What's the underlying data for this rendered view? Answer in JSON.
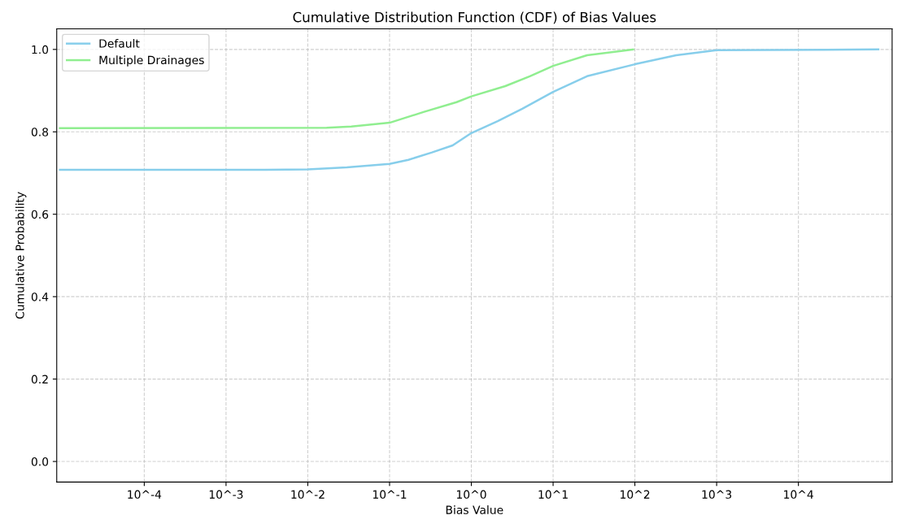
{
  "chart_data": {
    "type": "line",
    "title": "Cumulative Distribution Function (CDF) of Bias Values",
    "xlabel": "Bias Value",
    "ylabel": "Cumulative Probability",
    "log": "x",
    "grid": true,
    "line_style": "solid",
    "legend": "top left",
    "xlim": [
      8.5e-06,
      140000
    ],
    "ylim": [
      -0.05,
      1.05
    ],
    "xticks": [
      {
        "value": 0.0001,
        "label": "10^-4"
      },
      {
        "value": 0.001,
        "label": "10^-3"
      },
      {
        "value": 0.01,
        "label": "10^-2"
      },
      {
        "value": 0.1,
        "label": "10^-1"
      },
      {
        "value": 1,
        "label": "10^0"
      },
      {
        "value": 10,
        "label": "10^1"
      },
      {
        "value": 100,
        "label": "10^2"
      },
      {
        "value": 1000,
        "label": "10^3"
      },
      {
        "value": 10000,
        "label": "10^4"
      }
    ],
    "yticks": [
      {
        "value": 0.0,
        "label": "0.0"
      },
      {
        "value": 0.2,
        "label": "0.2"
      },
      {
        "value": 0.4,
        "label": "0.4"
      },
      {
        "value": 0.6,
        "label": "0.6"
      },
      {
        "value": 0.8,
        "label": "0.8"
      },
      {
        "value": 1.0,
        "label": "1.0"
      }
    ],
    "series": [
      {
        "name": "Default",
        "color": "#87ceeb",
        "x": [
          9.3e-06,
          0.003,
          0.01,
          0.03,
          0.1,
          0.17,
          0.33,
          0.59,
          1,
          2.1,
          4.2,
          10,
          26,
          100,
          320,
          1000,
          95000
        ],
        "values": [
          0.708,
          0.708,
          0.709,
          0.714,
          0.722,
          0.732,
          0.75,
          0.767,
          0.797,
          0.826,
          0.856,
          0.897,
          0.935,
          0.964,
          0.986,
          0.998,
          1.0
        ]
      },
      {
        "name": "Multiple Drainages",
        "color": "#90ee90",
        "x": [
          9.3e-06,
          0.017,
          0.034,
          0.1,
          0.26,
          0.66,
          1,
          2.6,
          5.2,
          10,
          26,
          95
        ],
        "values": [
          0.809,
          0.81,
          0.813,
          0.822,
          0.848,
          0.872,
          0.886,
          0.911,
          0.935,
          0.96,
          0.986,
          1.0
        ]
      }
    ]
  }
}
